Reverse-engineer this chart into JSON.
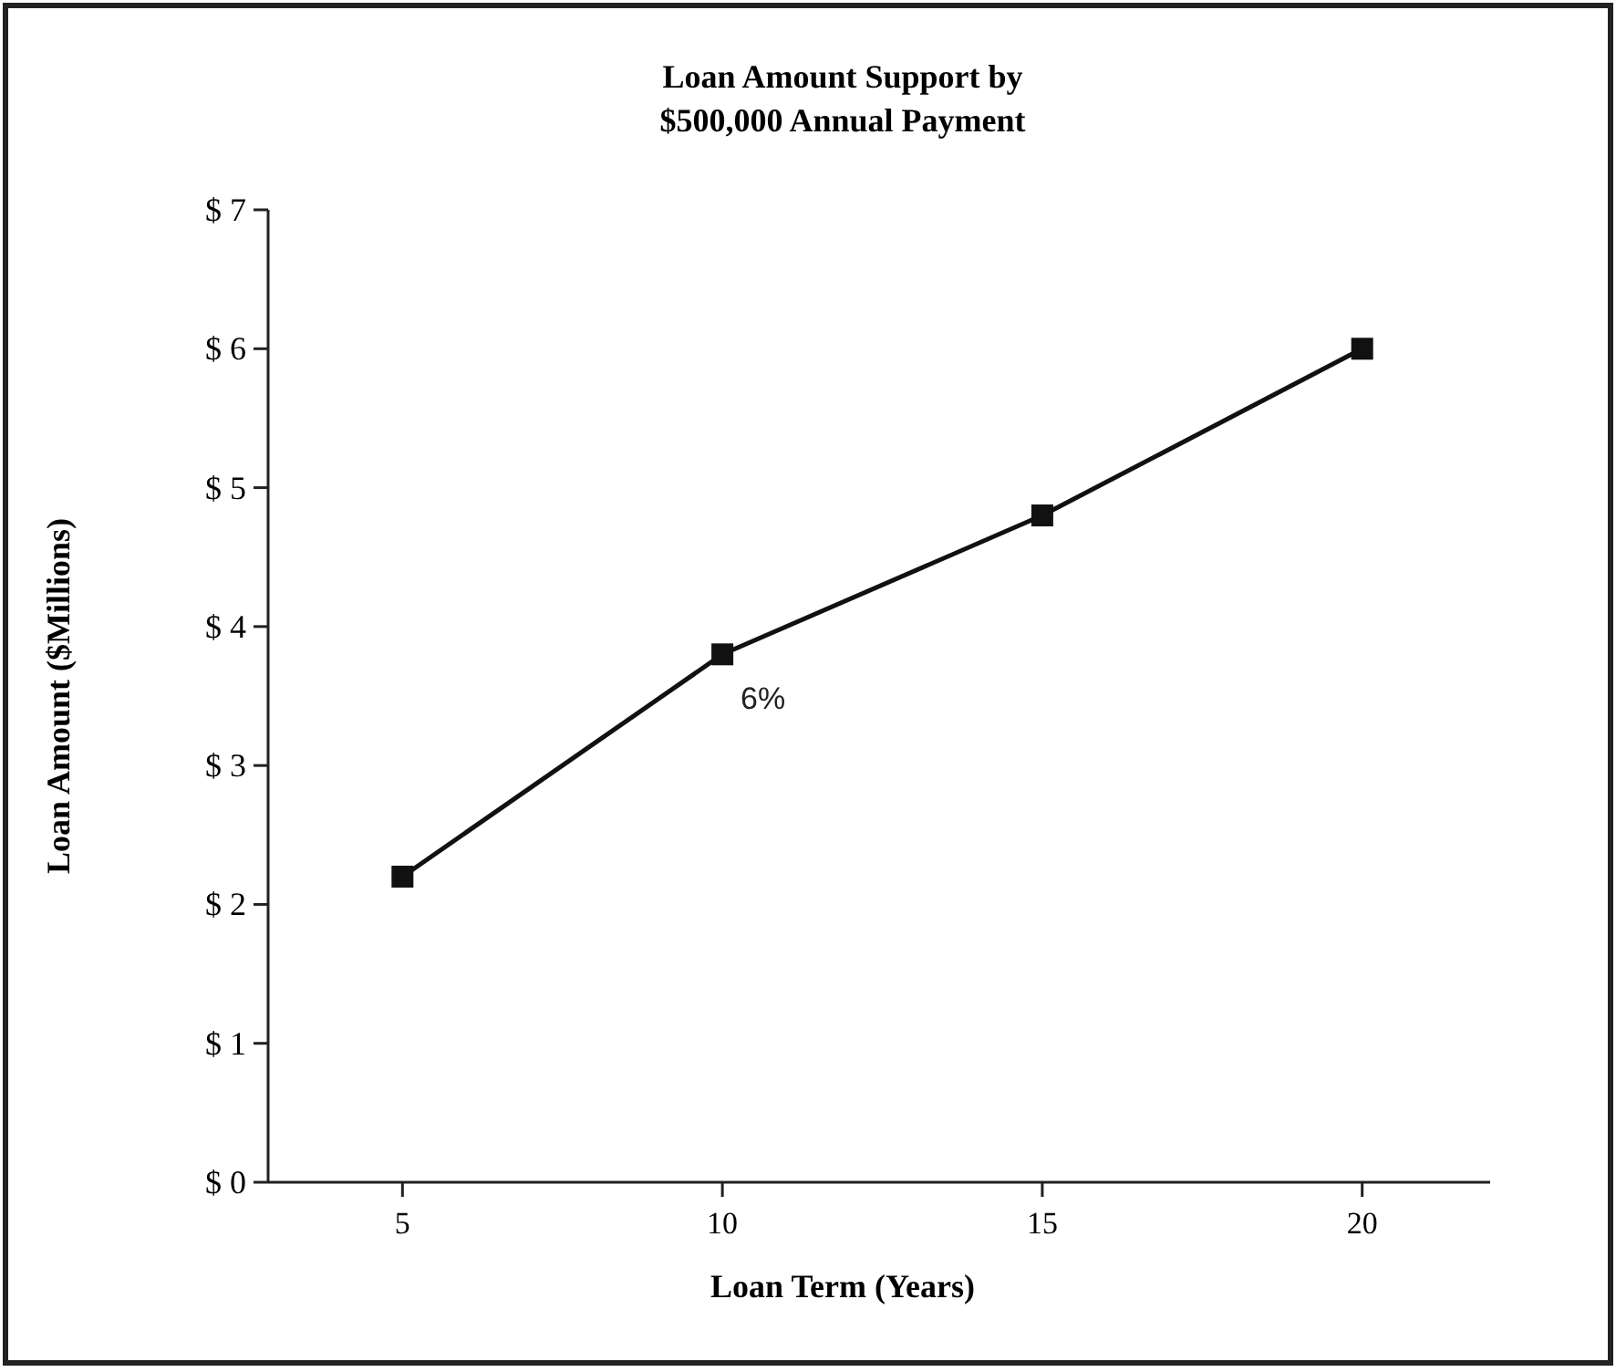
{
  "chart_data": {
    "type": "line",
    "title": "Loan Amount Support by\n$500,000 Annual Payment",
    "xlabel": "Loan Term (Years)",
    "ylabel": "Loan Amount ($Millions)",
    "x": [
      5,
      10,
      15,
      20
    ],
    "series": [
      {
        "name": "6%",
        "color": "#111111",
        "values": [
          2.2,
          3.8,
          4.8,
          6.0
        ]
      }
    ],
    "xlim": [
      2.9,
      22
    ],
    "xticks": [
      5,
      10,
      15,
      20
    ],
    "ylim": [
      0,
      7
    ],
    "yticks": [
      {
        "value": 0,
        "label": "$ 0"
      },
      {
        "value": 1,
        "label": "$ 1"
      },
      {
        "value": 2,
        "label": "$ 2"
      },
      {
        "value": 3,
        "label": "$ 3"
      },
      {
        "value": 4,
        "label": "$ 4"
      },
      {
        "value": 5,
        "label": "$ 5"
      },
      {
        "value": 6,
        "label": "$ 6"
      },
      {
        "value": 7,
        "label": "$ 7"
      }
    ],
    "grid": false,
    "marker": "square",
    "line_style": "solid"
  }
}
